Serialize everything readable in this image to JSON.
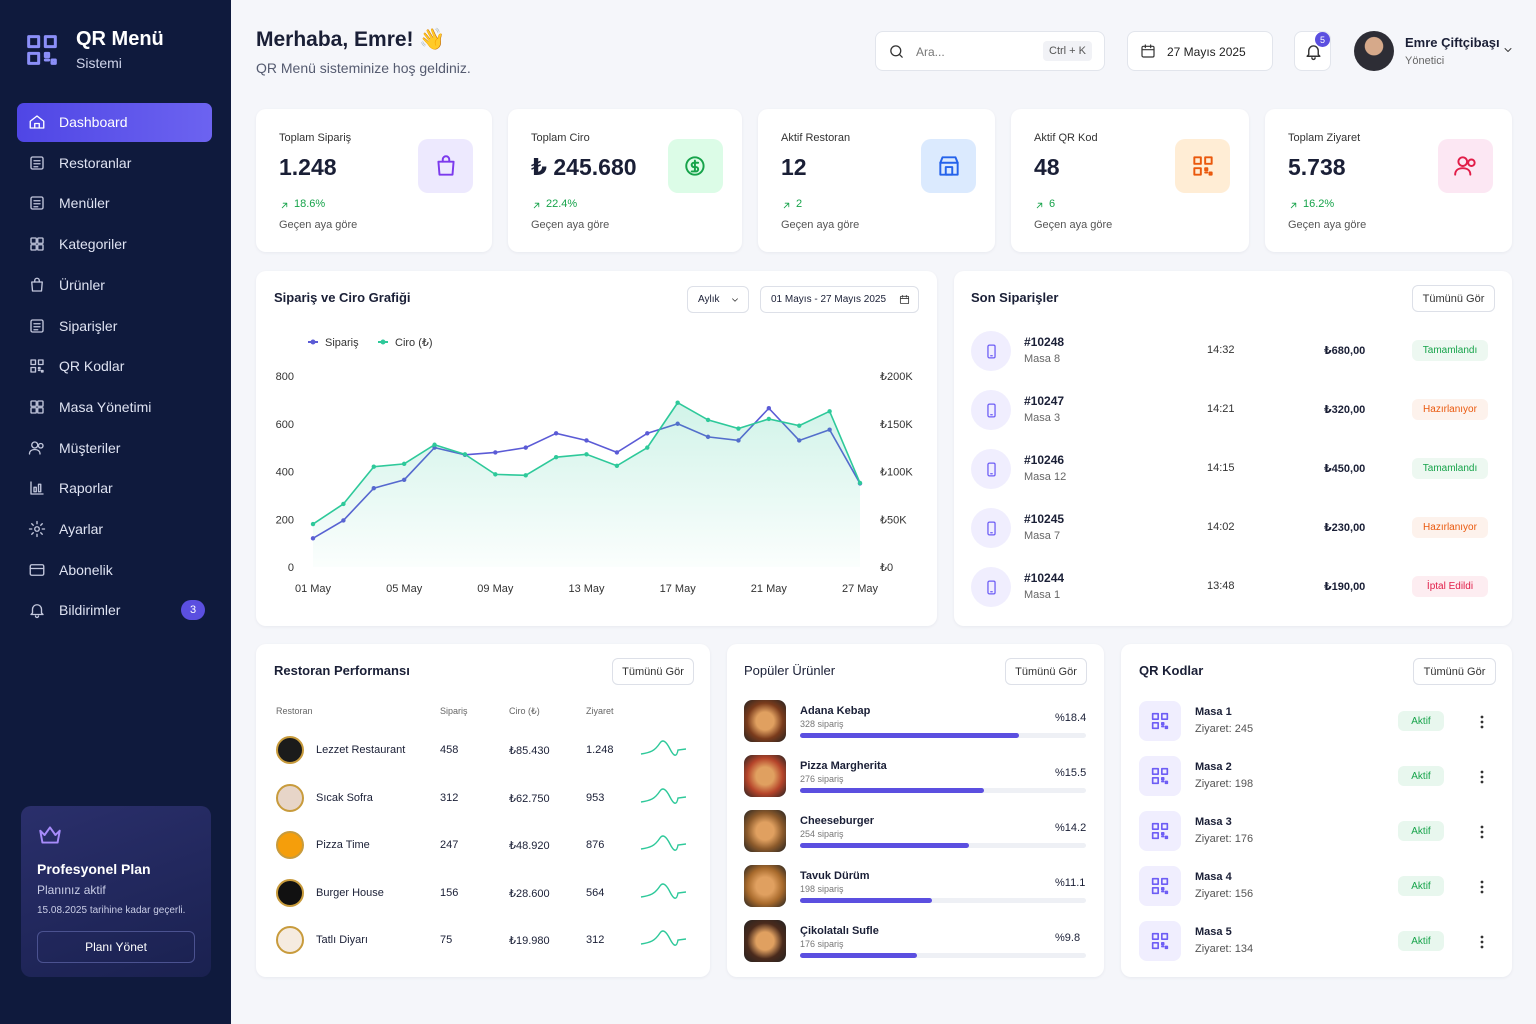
{
  "sidebar": {
    "brand_title": "QR Menü",
    "brand_subtitle": "Sistemi",
    "nav": [
      {
        "label": "Dashboard"
      },
      {
        "label": "Restoranlar"
      },
      {
        "label": "Menüler"
      },
      {
        "label": "Kategoriler"
      },
      {
        "label": "Ürünler"
      },
      {
        "label": "Siparişler"
      },
      {
        "label": "QR Kodlar"
      },
      {
        "label": "Masa Yönetimi"
      },
      {
        "label": "Müşteriler"
      },
      {
        "label": "Raporlar"
      },
      {
        "label": "Ayarlar"
      },
      {
        "label": "Abonelik"
      },
      {
        "label": "Bildirimler",
        "badge": 3
      }
    ],
    "plan": {
      "title": "Profesyonel Plan",
      "status": "Planınız aktif",
      "valid": "15.08.2025 tarihine kadar geçerli.",
      "button": "Planı Yönet"
    }
  },
  "header": {
    "greeting": "Merhaba, Emre! 👋",
    "subtitle": "QR Menü sisteminize hoş geldiniz.",
    "search_placeholder": "Ara...",
    "shortcut": "Ctrl + K",
    "date": "27 Mayıs 2025",
    "notifications": 5,
    "user_name": "Emre Çiftçibaşı",
    "user_role": "Yönetici"
  },
  "stats": [
    {
      "label": "Toplam Sipariş",
      "value": "1.248",
      "change": "18.6%",
      "note": "Geçen aya göre"
    },
    {
      "label": "Toplam Ciro",
      "value": "₺ 245.680",
      "change": "22.4%",
      "note": "Geçen aya göre"
    },
    {
      "label": "Aktif Restoran",
      "value": "12",
      "change": "2",
      "note": "Geçen aya göre"
    },
    {
      "label": "Aktif QR Kod",
      "value": "48",
      "change": "6",
      "note": "Geçen aya göre"
    },
    {
      "label": "Toplam Ziyaret",
      "value": "5.738",
      "change": "16.2%",
      "note": "Geçen aya göre"
    }
  ],
  "chart_panel": {
    "title": "Sipariş ve Ciro Grafiği",
    "period": "Aylık",
    "range": "01 Mayıs - 27 Mayıs 2025"
  },
  "chart_data": {
    "type": "line",
    "categories": [
      "01 May",
      null,
      null,
      "05 May",
      null,
      null,
      "09 May",
      null,
      null,
      "13 May",
      null,
      null,
      "17 May",
      null,
      null,
      "21 May",
      null,
      null,
      "27 May"
    ],
    "series": [
      {
        "name": "Sipariş",
        "color": "#5b5bd6",
        "values": [
          120,
          195,
          330,
          365,
          500,
          470,
          480,
          500,
          560,
          530,
          480,
          560,
          600,
          545,
          530,
          665,
          530,
          575,
          350
        ]
      },
      {
        "name": "Ciro (₺)",
        "color": "#2ec99a",
        "axis": "y2",
        "area": true,
        "values": [
          45000,
          66000,
          105000,
          108000,
          128000,
          118000,
          97000,
          96000,
          115000,
          118000,
          106000,
          125000,
          172000,
          154000,
          145000,
          155000,
          148000,
          163000,
          88000
        ]
      }
    ],
    "ylim": [
      0,
      800
    ],
    "yticks": [
      0,
      200,
      400,
      600,
      800
    ],
    "y2lim": [
      0,
      200000
    ],
    "y2ticks": [
      {
        "value": 0,
        "label": "₺0"
      },
      {
        "value": 50000,
        "label": "₺50K"
      },
      {
        "value": 100000,
        "label": "₺100K"
      },
      {
        "value": 150000,
        "label": "₺150K"
      },
      {
        "value": 200000,
        "label": "₺200K"
      }
    ],
    "grid": false
  },
  "orders": {
    "title": "Son Siparişler",
    "button": "Tümünü Gör",
    "rows": [
      {
        "id": "#10248",
        "table": "Masa 8",
        "time": "14:32",
        "amount": "₺680,00",
        "status": "Tamamlandı",
        "status_color": "#16a34a"
      },
      {
        "id": "#10247",
        "table": "Masa 3",
        "time": "14:21",
        "amount": "₺320,00",
        "status": "Hazırlanıyor",
        "status_color": "#ea580c"
      },
      {
        "id": "#10246",
        "table": "Masa 12",
        "time": "14:15",
        "amount": "₺450,00",
        "status": "Tamamlandı",
        "status_color": "#16a34a"
      },
      {
        "id": "#10245",
        "table": "Masa 7",
        "time": "14:02",
        "amount": "₺230,00",
        "status": "Hazırlanıyor",
        "status_color": "#ea580c"
      },
      {
        "id": "#10244",
        "table": "Masa 1",
        "time": "13:48",
        "amount": "₺190,00",
        "status": "İptal Edildi",
        "status_color": "#e11d48"
      }
    ]
  },
  "performance": {
    "title": "Restoran Performansı",
    "button": "Tümünü Gör",
    "columns": [
      "Restoran",
      "Sipariş",
      "Ciro (₺)",
      "Ziyaret"
    ],
    "rows": [
      {
        "name": "Lezzet Restaurant",
        "orders": "458",
        "revenue": "₺85.430",
        "visits": "1.248"
      },
      {
        "name": "Sıcak Sofra",
        "orders": "312",
        "revenue": "₺62.750",
        "visits": "953"
      },
      {
        "name": "Pizza Time",
        "orders": "247",
        "revenue": "₺48.920",
        "visits": "876"
      },
      {
        "name": "Burger House",
        "orders": "156",
        "revenue": "₺28.600",
        "visits": "564"
      },
      {
        "name": "Tatlı Diyarı",
        "orders": "75",
        "revenue": "₺19.980",
        "visits": "312"
      }
    ]
  },
  "products": {
    "title": "Popüler Ürünler",
    "button": "Tümünü Gör",
    "rows": [
      {
        "name": "Adana Kebap",
        "orders": "328 sipariş",
        "share": 18.4,
        "share_label": "%18.4"
      },
      {
        "name": "Pizza Margherita",
        "orders": "276 sipariş",
        "share": 15.5,
        "share_label": "%15.5"
      },
      {
        "name": "Cheeseburger",
        "orders": "254 sipariş",
        "share": 14.2,
        "share_label": "%14.2"
      },
      {
        "name": "Tavuk Dürüm",
        "orders": "198 sipariş",
        "share": 11.1,
        "share_label": "%11.1"
      },
      {
        "name": "Çikolatalı Sufle",
        "orders": "176 sipariş",
        "share": 9.8,
        "share_label": "%9.8"
      }
    ]
  },
  "qr": {
    "title": "QR Kodlar",
    "button": "Tümünü Gör",
    "rows": [
      {
        "name": "Masa 1",
        "visits": "Ziyaret: 245",
        "status": "Aktif"
      },
      {
        "name": "Masa 2",
        "visits": "Ziyaret: 198",
        "status": "Aktif"
      },
      {
        "name": "Masa 3",
        "visits": "Ziyaret: 176",
        "status": "Aktif"
      },
      {
        "name": "Masa 4",
        "visits": "Ziyaret: 156",
        "status": "Aktif"
      },
      {
        "name": "Masa 5",
        "visits": "Ziyaret: 134",
        "status": "Aktif"
      }
    ]
  }
}
